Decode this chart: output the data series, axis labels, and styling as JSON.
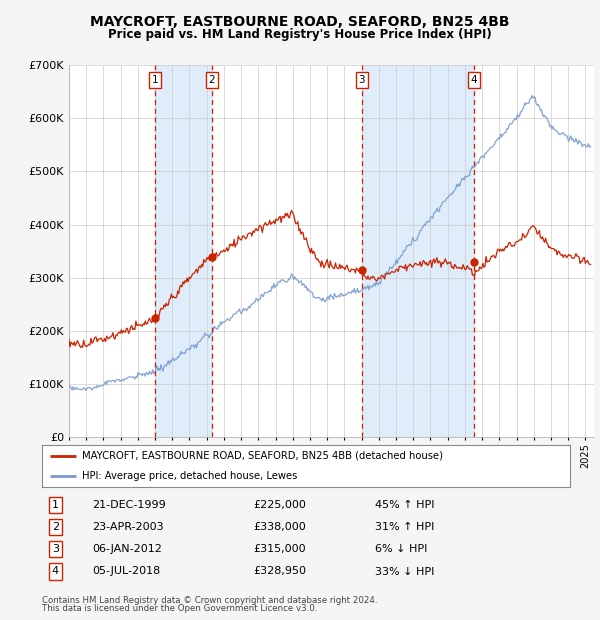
{
  "title": "MAYCROFT, EASTBOURNE ROAD, SEAFORD, BN25 4BB",
  "subtitle": "Price paid vs. HM Land Registry's House Price Index (HPI)",
  "legend_entry1": "MAYCROFT, EASTBOURNE ROAD, SEAFORD, BN25 4BB (detached house)",
  "legend_entry2": "HPI: Average price, detached house, Lewes",
  "footer1": "Contains HM Land Registry data © Crown copyright and database right 2024.",
  "footer2": "This data is licensed under the Open Government Licence v3.0.",
  "transactions": [
    {
      "num": 1,
      "date": "21-DEC-1999",
      "price": 225000,
      "pct": "45%",
      "dir": "↑",
      "year_x": 2000.0
    },
    {
      "num": 2,
      "date": "23-APR-2003",
      "price": 338000,
      "pct": "31%",
      "dir": "↑",
      "year_x": 2003.31
    },
    {
      "num": 3,
      "date": "06-JAN-2012",
      "price": 315000,
      "pct": "6%",
      "dir": "↓",
      "year_x": 2012.01
    },
    {
      "num": 4,
      "date": "05-JUL-2018",
      "price": 328950,
      "pct": "33%",
      "dir": "↓",
      "year_x": 2018.51
    }
  ],
  "ylim": [
    0,
    700000
  ],
  "xlim_start": 1995.0,
  "xlim_end": 2025.5,
  "bg_color": "#f5f5f5",
  "plot_bg": "#ffffff",
  "grid_color": "#cccccc",
  "red_color": "#cc2200",
  "blue_color": "#7799cc"
}
